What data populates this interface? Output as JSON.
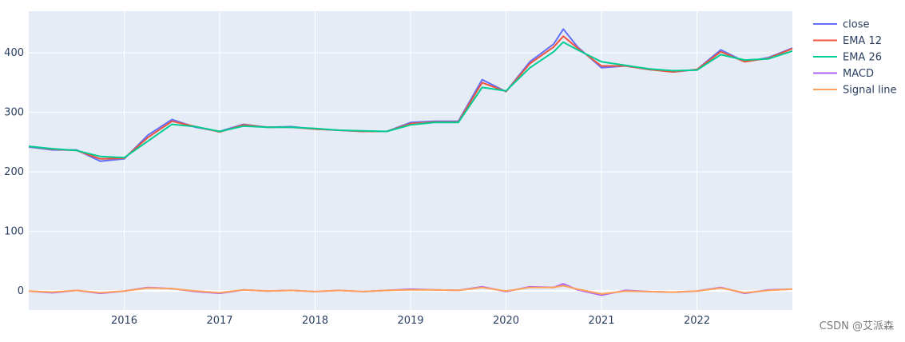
{
  "chart_data": {
    "type": "line",
    "x_tick_labels": [
      "2016",
      "2017",
      "2018",
      "2019",
      "2020",
      "2021",
      "2022"
    ],
    "y_tick_labels": [
      "0",
      "100",
      "200",
      "300",
      "400"
    ],
    "x_range": [
      2015.0,
      2023.0
    ],
    "ylim": [
      -32,
      470
    ],
    "grid": true,
    "legend_position": "right",
    "x": [
      2015.0,
      2015.25,
      2015.5,
      2015.75,
      2016.0,
      2016.25,
      2016.5,
      2016.75,
      2017.0,
      2017.25,
      2017.5,
      2017.75,
      2018.0,
      2018.25,
      2018.5,
      2018.75,
      2019.0,
      2019.25,
      2019.5,
      2019.75,
      2020.0,
      2020.25,
      2020.5,
      2020.6,
      2020.75,
      2021.0,
      2021.25,
      2021.5,
      2021.75,
      2022.0,
      2022.25,
      2022.5,
      2022.75,
      2023.0
    ],
    "series": [
      {
        "name": "close",
        "color": "#636efa",
        "values": [
          242,
          237,
          237,
          218,
          222,
          262,
          288,
          275,
          268,
          280,
          275,
          276,
          272,
          270,
          268,
          268,
          283,
          285,
          285,
          355,
          335,
          385,
          415,
          440,
          410,
          375,
          378,
          372,
          368,
          372,
          405,
          385,
          392,
          408
        ]
      },
      {
        "name": "EMA 12",
        "color": "#ef553b",
        "values": [
          243,
          238,
          236,
          222,
          223,
          258,
          285,
          276,
          267,
          279,
          275,
          275,
          272,
          270,
          268,
          268,
          281,
          284,
          284,
          350,
          335,
          382,
          410,
          428,
          408,
          378,
          378,
          372,
          368,
          372,
          402,
          385,
          391,
          407
        ]
      },
      {
        "name": "EMA 26",
        "color": "#00cc96",
        "values": [
          243,
          239,
          236,
          226,
          224,
          252,
          280,
          276,
          268,
          277,
          275,
          275,
          273,
          270,
          269,
          268,
          279,
          283,
          283,
          342,
          336,
          375,
          402,
          418,
          405,
          385,
          379,
          373,
          370,
          371,
          397,
          388,
          390,
          403
        ]
      },
      {
        "name": "MACD",
        "color": "#ab63fa",
        "values": [
          0,
          -3,
          1,
          -4,
          0,
          6,
          4,
          -1,
          -4,
          2,
          0,
          1,
          -1,
          1,
          -1,
          1,
          3,
          2,
          1,
          7,
          -1,
          7,
          6,
          12,
          2,
          -7,
          1,
          -1,
          -2,
          0,
          6,
          -4,
          2,
          3
        ]
      },
      {
        "name": "Signal line",
        "color": "#ffa15a",
        "values": [
          0,
          -2,
          1,
          -3,
          0,
          5,
          4,
          0,
          -3,
          2,
          0,
          1,
          -1,
          1,
          -1,
          1,
          2,
          2,
          1,
          6,
          0,
          6,
          6,
          9,
          3,
          -5,
          0,
          -1,
          -2,
          0,
          5,
          -3,
          1,
          3
        ]
      }
    ]
  },
  "watermark": "CSDN @艾派森"
}
